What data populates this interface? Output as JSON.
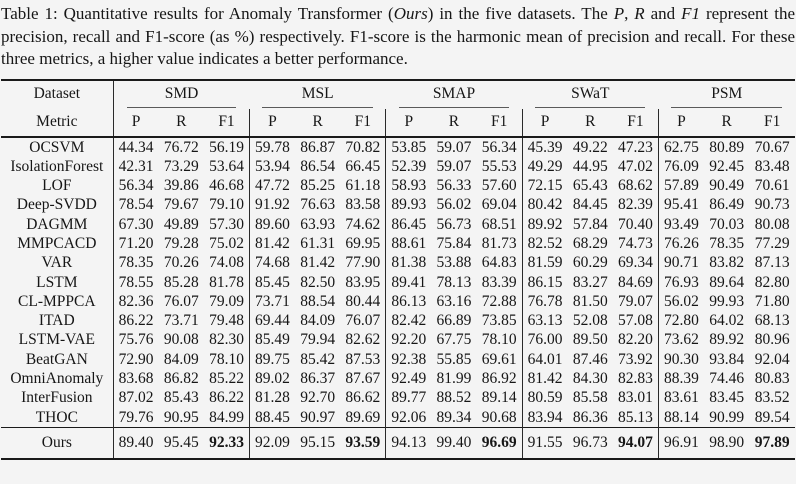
{
  "page": {
    "background": "#f4f4f4",
    "text_color": "#161616",
    "rule_color": "#1a1a1a",
    "cmidrule_color": "#5a5a5a"
  },
  "caption": {
    "segments": [
      {
        "text": "Table 1: Quantitative results for Anomaly Transformer (",
        "italic": false
      },
      {
        "text": "Ours",
        "italic": true
      },
      {
        "text": ") in the five datasets. The ",
        "italic": false
      },
      {
        "text": "P",
        "italic": true
      },
      {
        "text": ", ",
        "italic": false
      },
      {
        "text": "R",
        "italic": true
      },
      {
        "text": " and ",
        "italic": false
      },
      {
        "text": "F1",
        "italic": true
      },
      {
        "text": " represent the precision, recall and F1-score (as %) respectively. F1-score is the harmonic mean of precision and recall. For these three metrics, a higher value indicates a better performance.",
        "italic": false
      }
    ]
  },
  "chart_data": {
    "type": "table",
    "title": "Quantitative results for Anomaly Transformer (Ours) in the five datasets",
    "corner_labels": {
      "dataset": "Dataset",
      "metric": "Metric"
    },
    "groups": [
      "SMD",
      "MSL",
      "SMAP",
      "SWaT",
      "PSM"
    ],
    "metrics": [
      "P",
      "R",
      "F1"
    ],
    "rows": [
      {
        "method": "OCSVM",
        "values": [
          "44.34",
          "76.72",
          "56.19",
          "59.78",
          "86.87",
          "70.82",
          "53.85",
          "59.07",
          "56.34",
          "45.39",
          "49.22",
          "47.23",
          "62.75",
          "80.89",
          "70.67"
        ]
      },
      {
        "method": "IsolationForest",
        "values": [
          "42.31",
          "73.29",
          "53.64",
          "53.94",
          "86.54",
          "66.45",
          "52.39",
          "59.07",
          "55.53",
          "49.29",
          "44.95",
          "47.02",
          "76.09",
          "92.45",
          "83.48"
        ]
      },
      {
        "method": "LOF",
        "values": [
          "56.34",
          "39.86",
          "46.68",
          "47.72",
          "85.25",
          "61.18",
          "58.93",
          "56.33",
          "57.60",
          "72.15",
          "65.43",
          "68.62",
          "57.89",
          "90.49",
          "70.61"
        ]
      },
      {
        "method": "Deep-SVDD",
        "values": [
          "78.54",
          "79.67",
          "79.10",
          "91.92",
          "76.63",
          "83.58",
          "89.93",
          "56.02",
          "69.04",
          "80.42",
          "84.45",
          "82.39",
          "95.41",
          "86.49",
          "90.73"
        ]
      },
      {
        "method": "DAGMM",
        "values": [
          "67.30",
          "49.89",
          "57.30",
          "89.60",
          "63.93",
          "74.62",
          "86.45",
          "56.73",
          "68.51",
          "89.92",
          "57.84",
          "70.40",
          "93.49",
          "70.03",
          "80.08"
        ]
      },
      {
        "method": "MMPCACD",
        "values": [
          "71.20",
          "79.28",
          "75.02",
          "81.42",
          "61.31",
          "69.95",
          "88.61",
          "75.84",
          "81.73",
          "82.52",
          "68.29",
          "74.73",
          "76.26",
          "78.35",
          "77.29"
        ]
      },
      {
        "method": "VAR",
        "values": [
          "78.35",
          "70.26",
          "74.08",
          "74.68",
          "81.42",
          "77.90",
          "81.38",
          "53.88",
          "64.83",
          "81.59",
          "60.29",
          "69.34",
          "90.71",
          "83.82",
          "87.13"
        ]
      },
      {
        "method": "LSTM",
        "values": [
          "78.55",
          "85.28",
          "81.78",
          "85.45",
          "82.50",
          "83.95",
          "89.41",
          "78.13",
          "83.39",
          "86.15",
          "83.27",
          "84.69",
          "76.93",
          "89.64",
          "82.80"
        ]
      },
      {
        "method": "CL-MPPCA",
        "values": [
          "82.36",
          "76.07",
          "79.09",
          "73.71",
          "88.54",
          "80.44",
          "86.13",
          "63.16",
          "72.88",
          "76.78",
          "81.50",
          "79.07",
          "56.02",
          "99.93",
          "71.80"
        ]
      },
      {
        "method": "ITAD",
        "values": [
          "86.22",
          "73.71",
          "79.48",
          "69.44",
          "84.09",
          "76.07",
          "82.42",
          "66.89",
          "73.85",
          "63.13",
          "52.08",
          "57.08",
          "72.80",
          "64.02",
          "68.13"
        ]
      },
      {
        "method": "LSTM-VAE",
        "values": [
          "75.76",
          "90.08",
          "82.30",
          "85.49",
          "79.94",
          "82.62",
          "92.20",
          "67.75",
          "78.10",
          "76.00",
          "89.50",
          "82.20",
          "73.62",
          "89.92",
          "80.96"
        ]
      },
      {
        "method": "BeatGAN",
        "values": [
          "72.90",
          "84.09",
          "78.10",
          "89.75",
          "85.42",
          "87.53",
          "92.38",
          "55.85",
          "69.61",
          "64.01",
          "87.46",
          "73.92",
          "90.30",
          "93.84",
          "92.04"
        ]
      },
      {
        "method": "OmniAnomaly",
        "values": [
          "83.68",
          "86.82",
          "85.22",
          "89.02",
          "86.37",
          "87.67",
          "92.49",
          "81.99",
          "86.92",
          "81.42",
          "84.30",
          "82.83",
          "88.39",
          "74.46",
          "80.83"
        ]
      },
      {
        "method": "InterFusion",
        "values": [
          "87.02",
          "85.43",
          "86.22",
          "81.28",
          "92.70",
          "86.62",
          "89.77",
          "88.52",
          "89.14",
          "80.59",
          "85.58",
          "83.01",
          "83.61",
          "83.45",
          "83.52"
        ]
      },
      {
        "method": "THOC",
        "values": [
          "79.76",
          "90.95",
          "84.99",
          "88.45",
          "90.97",
          "89.69",
          "92.06",
          "89.34",
          "90.68",
          "83.94",
          "86.36",
          "85.13",
          "88.14",
          "90.99",
          "89.54"
        ]
      }
    ],
    "ours_row": {
      "method": "Ours",
      "values": [
        "89.40",
        "95.45",
        "92.33",
        "92.09",
        "95.15",
        "93.59",
        "94.13",
        "99.40",
        "96.69",
        "91.55",
        "96.73",
        "94.07",
        "96.91",
        "98.90",
        "97.89"
      ],
      "bold_indices": [
        2,
        5,
        8,
        11,
        14
      ]
    }
  }
}
